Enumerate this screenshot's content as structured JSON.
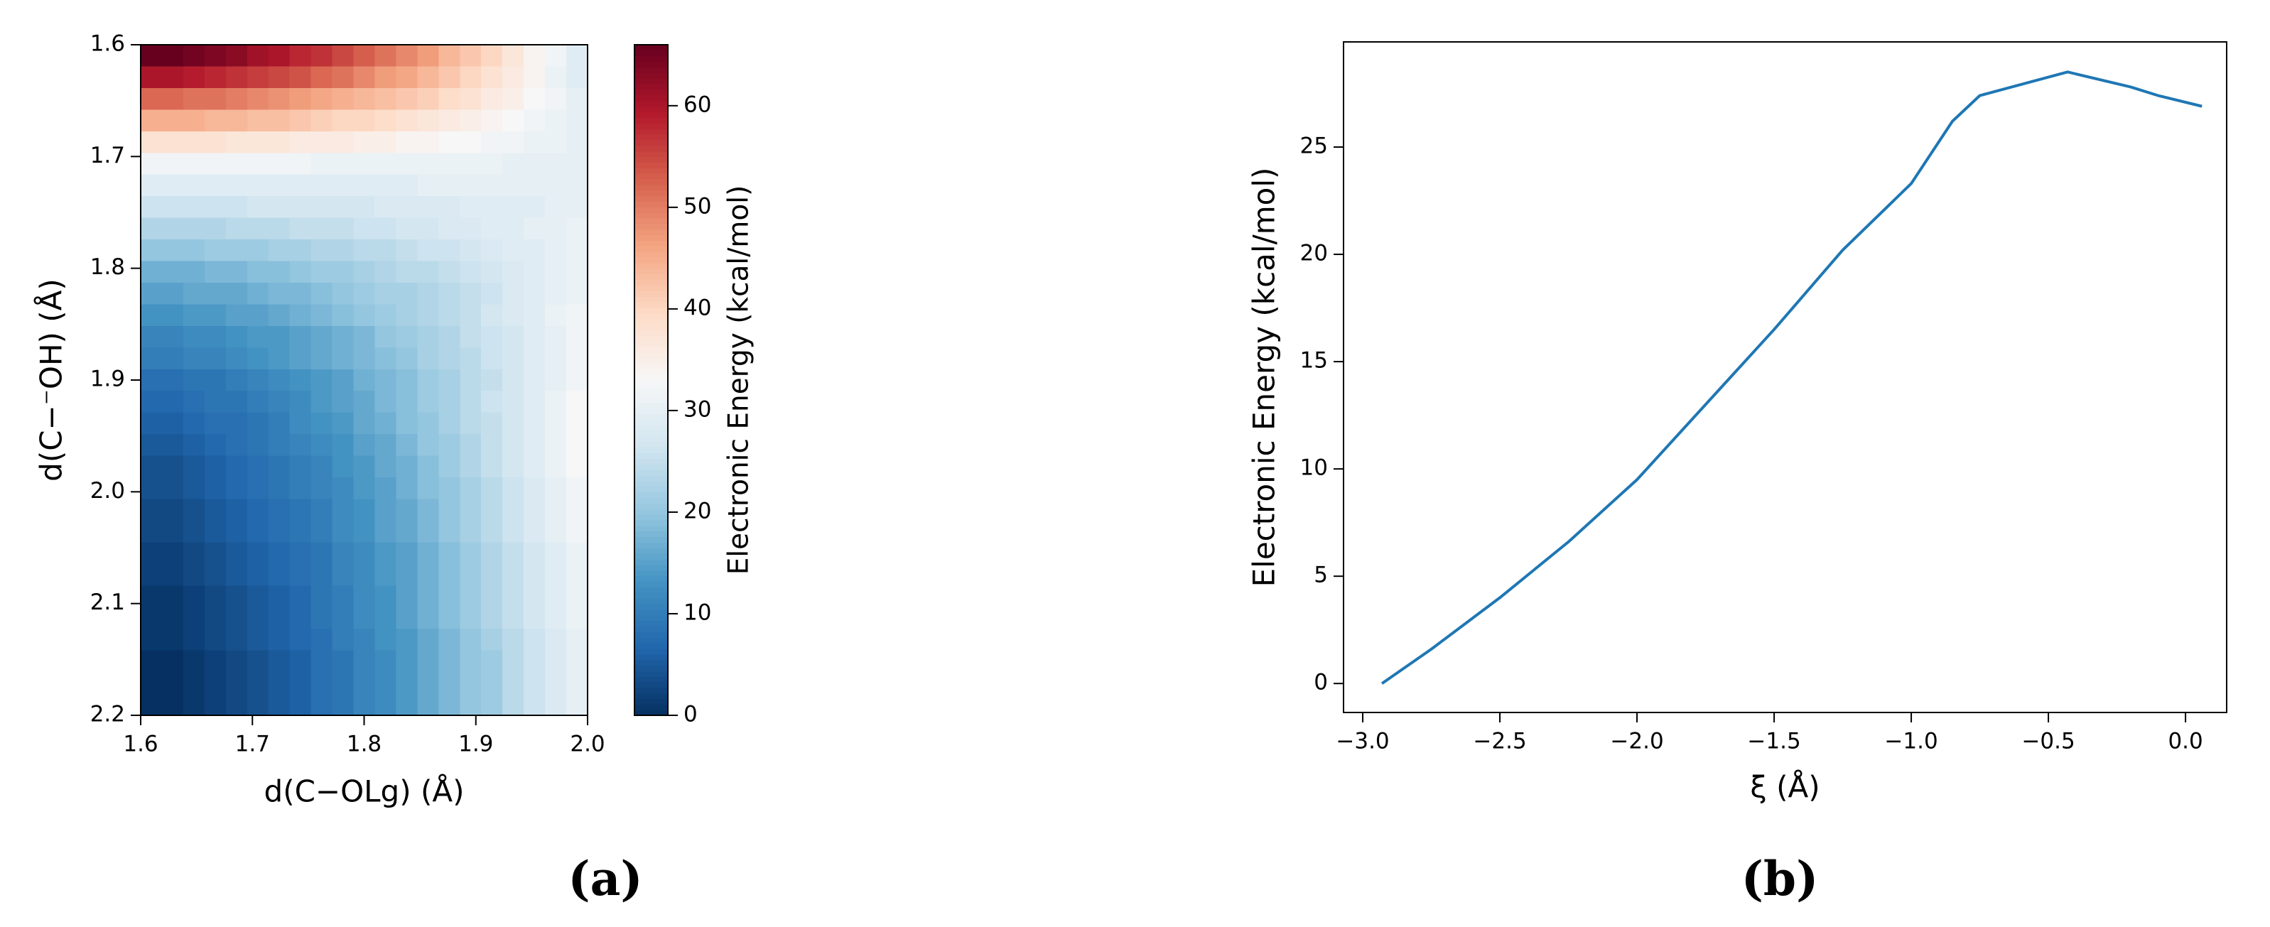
{
  "chart_data": [
    {
      "type": "heatmap",
      "panel_label": "(a)",
      "xlabel": "d(C−OLg) (Å)",
      "ylabel": "d(C−⁻OH) (Å)",
      "colorbar_label": "Electronic Energy (kcal/mol)",
      "colormap": "RdBu_r",
      "clim": [
        0,
        66
      ],
      "cticks": [
        0,
        10,
        20,
        30,
        40,
        50,
        60
      ],
      "xlim": [
        1.6,
        2.0
      ],
      "ylim": [
        1.6,
        2.2
      ],
      "y_inverted": true,
      "xticks": [
        1.6,
        1.7,
        1.8,
        1.9,
        {
          "value": 2,
          "label": "2.0"
        }
      ],
      "yticks": [
        1.6,
        1.7,
        1.8,
        1.9,
        {
          "value": 2,
          "label": "2.0"
        },
        2.1,
        2.2
      ],
      "values": [
        [
          66,
          66,
          65,
          64,
          63,
          61,
          60,
          58,
          57,
          55,
          53,
          51,
          49,
          47,
          44,
          42,
          40,
          37,
          34,
          32,
          29
        ],
        [
          60,
          60,
          59,
          58,
          57,
          56,
          55,
          54,
          52,
          51,
          49,
          47,
          46,
          44,
          42,
          40,
          38,
          36,
          34,
          31,
          29
        ],
        [
          52,
          52,
          51,
          51,
          50,
          49,
          48,
          47,
          46,
          45,
          44,
          43,
          42,
          41,
          39,
          38,
          36,
          35,
          33,
          32,
          30
        ],
        [
          45,
          45,
          45,
          44,
          44,
          43,
          43,
          42,
          41,
          40,
          40,
          39,
          38,
          37,
          36,
          35,
          34,
          33,
          32,
          31,
          30
        ],
        [
          38,
          38,
          38,
          38,
          37,
          37,
          37,
          36,
          36,
          36,
          35,
          35,
          34,
          34,
          33,
          33,
          32,
          32,
          31,
          31,
          30
        ],
        [
          32,
          32,
          32,
          32,
          32,
          32,
          32,
          32,
          31,
          31,
          31,
          31,
          31,
          31,
          31,
          31,
          31,
          30,
          30,
          30,
          30
        ],
        [
          29,
          29,
          29,
          29,
          29,
          29,
          29,
          29,
          29,
          29,
          29,
          29,
          29,
          30,
          30,
          30,
          30,
          30,
          30,
          30,
          30
        ],
        [
          26,
          26,
          26,
          26,
          26,
          27,
          27,
          27,
          27,
          27,
          27,
          28,
          28,
          28,
          28,
          29,
          29,
          29,
          29,
          30,
          30
        ],
        [
          23,
          23,
          23,
          23,
          24,
          24,
          24,
          25,
          25,
          25,
          26,
          26,
          27,
          27,
          28,
          28,
          29,
          29,
          30,
          30,
          31
        ],
        [
          20,
          20,
          20,
          21,
          21,
          21,
          22,
          22,
          23,
          23,
          24,
          24,
          25,
          26,
          26,
          27,
          28,
          29,
          29,
          30,
          31
        ],
        [
          17,
          17,
          17,
          18,
          18,
          19,
          19,
          20,
          21,
          21,
          22,
          23,
          24,
          24,
          25,
          26,
          27,
          28,
          29,
          30,
          31
        ],
        [
          15,
          15,
          16,
          16,
          16,
          17,
          18,
          18,
          19,
          20,
          21,
          22,
          22,
          23,
          24,
          25,
          26,
          28,
          29,
          30,
          31
        ],
        [
          13,
          13,
          14,
          14,
          15,
          15,
          16,
          17,
          18,
          19,
          20,
          21,
          22,
          23,
          24,
          25,
          27,
          28,
          29,
          31,
          32
        ],
        [
          11,
          11,
          12,
          12,
          13,
          14,
          14,
          15,
          16,
          17,
          18,
          20,
          21,
          22,
          23,
          25,
          26,
          27,
          29,
          30,
          32
        ],
        [
          10,
          10,
          11,
          11,
          12,
          13,
          14,
          15,
          16,
          17,
          18,
          19,
          20,
          22,
          23,
          24,
          26,
          27,
          29,
          30,
          32
        ],
        [
          8,
          8,
          9,
          9,
          10,
          11,
          12,
          13,
          14,
          15,
          17,
          18,
          19,
          21,
          22,
          24,
          25,
          27,
          29,
          30,
          32
        ],
        [
          7,
          7,
          8,
          9,
          9,
          10,
          11,
          12,
          14,
          15,
          16,
          18,
          19,
          21,
          22,
          24,
          26,
          27,
          29,
          31,
          33
        ],
        [
          6,
          6,
          7,
          8,
          8,
          9,
          10,
          12,
          13,
          14,
          16,
          17,
          19,
          20,
          22,
          24,
          25,
          27,
          29,
          31,
          33
        ],
        [
          5,
          5,
          6,
          7,
          8,
          9,
          10,
          11,
          12,
          13,
          15,
          16,
          18,
          20,
          21,
          23,
          25,
          27,
          29,
          31,
          33
        ],
        [
          4,
          4,
          5,
          6,
          7,
          8,
          9,
          10,
          11,
          13,
          14,
          16,
          17,
          19,
          21,
          23,
          25,
          27,
          29,
          31,
          33
        ],
        [
          4,
          4,
          5,
          6,
          7,
          8,
          9,
          10,
          11,
          12,
          14,
          15,
          17,
          19,
          20,
          22,
          24,
          26,
          28,
          30,
          32
        ],
        [
          3,
          3,
          4,
          5,
          6,
          7,
          8,
          9,
          10,
          12,
          13,
          15,
          16,
          18,
          20,
          22,
          24,
          26,
          28,
          30,
          32
        ],
        [
          3,
          3,
          4,
          5,
          6,
          7,
          8,
          9,
          10,
          12,
          13,
          15,
          16,
          18,
          20,
          22,
          24,
          26,
          28,
          30,
          32
        ],
        [
          2,
          2,
          3,
          4,
          5,
          6,
          7,
          8,
          9,
          11,
          12,
          14,
          15,
          17,
          19,
          21,
          23,
          25,
          27,
          29,
          31
        ],
        [
          2,
          2,
          3,
          4,
          5,
          6,
          7,
          8,
          9,
          11,
          12,
          14,
          15,
          17,
          19,
          21,
          23,
          25,
          27,
          29,
          31
        ],
        [
          1,
          1,
          2,
          3,
          4,
          5,
          6,
          7,
          9,
          10,
          12,
          13,
          15,
          17,
          19,
          21,
          23,
          25,
          27,
          29,
          31
        ],
        [
          1,
          1,
          2,
          3,
          4,
          5,
          6,
          7,
          9,
          10,
          12,
          13,
          15,
          17,
          19,
          21,
          23,
          25,
          27,
          29,
          31
        ],
        [
          1,
          1,
          2,
          3,
          4,
          5,
          6,
          7,
          8,
          10,
          11,
          13,
          14,
          16,
          18,
          20,
          22,
          24,
          26,
          28,
          30
        ],
        [
          0,
          0,
          1,
          2,
          3,
          4,
          5,
          6,
          8,
          9,
          11,
          12,
          14,
          16,
          18,
          20,
          21,
          24,
          26,
          28,
          30
        ],
        [
          0,
          0,
          1,
          2,
          3,
          4,
          5,
          6,
          8,
          9,
          11,
          12,
          14,
          16,
          18,
          20,
          21,
          24,
          26,
          28,
          30
        ],
        [
          0,
          0,
          1,
          2,
          3,
          4,
          5,
          6,
          8,
          9,
          11,
          12,
          14,
          16,
          18,
          20,
          21,
          24,
          26,
          28,
          30
        ]
      ]
    },
    {
      "type": "line",
      "panel_label": "(b)",
      "xlabel": "ξ (Å)",
      "ylabel": "Electronic Energy (kcal/mol)",
      "color": "#1f77b4",
      "x": [
        -2.93,
        -2.75,
        -2.5,
        -2.25,
        -2.0,
        -1.75,
        -1.5,
        -1.25,
        -1.0,
        -0.85,
        -0.75,
        -0.43,
        -0.2,
        -0.1,
        0.06
      ],
      "values": [
        0,
        1.6,
        4.0,
        6.6,
        9.5,
        13.0,
        16.5,
        20.2,
        23.3,
        26.2,
        27.4,
        28.5,
        27.8,
        27.4,
        26.9
      ],
      "xlim": [
        -3.07,
        0.15
      ],
      "ylim": [
        -1.35,
        29.9
      ],
      "xticks": [
        {
          "value": -3,
          "label": "−3.0"
        },
        {
          "value": -2.5,
          "label": "−2.5"
        },
        {
          "value": -2,
          "label": "−2.0"
        },
        {
          "value": -1.5,
          "label": "−1.5"
        },
        {
          "value": -1,
          "label": "−1.0"
        },
        {
          "value": -0.5,
          "label": "−0.5"
        },
        {
          "value": 0,
          "label": "0.0"
        }
      ],
      "yticks": [
        0,
        5,
        10,
        15,
        20,
        25
      ]
    }
  ]
}
